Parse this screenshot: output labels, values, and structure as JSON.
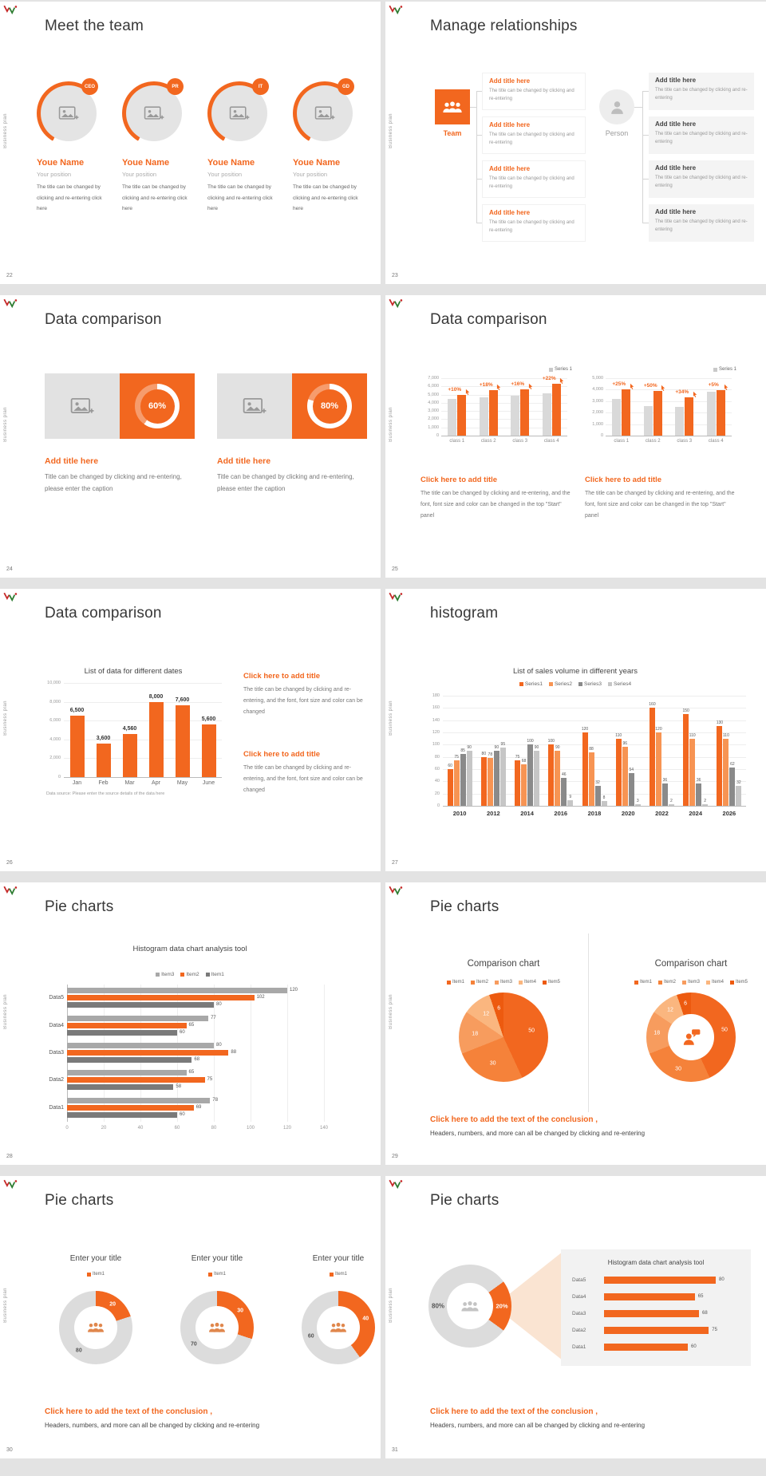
{
  "accent": "#F2671F",
  "common": {
    "sidebar": "Business plan"
  },
  "slides": [
    {
      "page": "22",
      "title": "Meet the team",
      "members": [
        {
          "badge": "CEO",
          "name": "Youe Name",
          "position": "Your position",
          "desc": "The title can be changed by clicking and re-entering click here"
        },
        {
          "badge": "PR",
          "name": "Youe Name",
          "position": "Your position",
          "desc": "The title can be changed by clicking and re-entering click here"
        },
        {
          "badge": "IT",
          "name": "Youe Name",
          "position": "Your position",
          "desc": "The title can be changed by clicking and re-entering click here"
        },
        {
          "badge": "GD",
          "name": "Youe Name",
          "position": "Your position",
          "desc": "The title can be changed by clicking and re-entering click here"
        }
      ]
    },
    {
      "page": "23",
      "title": "Manage relationships",
      "team_label": "Team",
      "person_label": "Person",
      "items_left": [
        {
          "title": "Add title here",
          "text": "The title can be changed by clicking and re-entering"
        },
        {
          "title": "Add title here",
          "text": "The title can be changed by clicking and re-entering"
        },
        {
          "title": "Add title here",
          "text": "The title can be changed by clicking and re-entering"
        },
        {
          "title": "Add title here",
          "text": "The title can be changed by clicking and re-entering"
        }
      ],
      "items_right": [
        {
          "title": "Add title here",
          "text": "The title can be changed by clicking and re-entering"
        },
        {
          "title": "Add title here",
          "text": "The title can be changed by clicking and re-entering"
        },
        {
          "title": "Add title here",
          "text": "The title can be changed by clicking and re-entering"
        },
        {
          "title": "Add title here",
          "text": "The title can be changed by clicking and re-entering"
        }
      ]
    },
    {
      "page": "24",
      "title": "Data comparison",
      "cards": [
        {
          "percent": 60,
          "label": "60%",
          "title": "Add title here",
          "text": "Title can be changed by clicking and re-entering, please enter the caption"
        },
        {
          "percent": 80,
          "label": "80%",
          "title": "Add title here",
          "text": "Title can be changed by clicking and re-entering, please enter the caption"
        }
      ]
    },
    {
      "page": "25",
      "title": "Data comparison",
      "charts": [
        {
          "type": "bar",
          "legend": "Series 1",
          "ymax": 7000,
          "yticks": [
            "7,000",
            "6,000",
            "5,000",
            "4,000",
            "3,000",
            "2,000",
            "1,000",
            "0"
          ],
          "categories": [
            "class 1",
            "class 2",
            "class 3",
            "class 4"
          ],
          "series": [
            {
              "name": "base",
              "values": [
                4500,
                4700,
                4900,
                5200
              ]
            },
            {
              "name": "Series 1",
              "values": [
                4950,
                5546,
                5684,
                6344
              ]
            }
          ],
          "growth": [
            "+10%",
            "+18%",
            "+16%",
            "+22%"
          ],
          "caption_title": "Click here to add title",
          "caption_text": "The title can be changed by clicking and re-entering, and the font, font size and color can be changed in the top \"Start\" panel"
        },
        {
          "type": "bar",
          "legend": "Series 1",
          "ymax": 5000,
          "yticks": [
            "5,000",
            "4,000",
            "3,000",
            "2,000",
            "1,000",
            "0"
          ],
          "categories": [
            "class 1",
            "class 2",
            "class 3",
            "class 4"
          ],
          "series": [
            {
              "name": "base",
              "values": [
                3200,
                2600,
                2500,
                3800
              ]
            },
            {
              "name": "Series 1",
              "values": [
                4000,
                3900,
                3350,
                3990
              ]
            }
          ],
          "growth": [
            "+25%",
            "+50%",
            "+34%",
            "+5%"
          ],
          "caption_title": "Click here to add title",
          "caption_text": "The title can be changed by clicking and re-entering, and the font, font size and color can be changed in the top \"Start\" panel"
        }
      ]
    },
    {
      "page": "26",
      "title": "Data comparison",
      "chart": {
        "type": "bar",
        "title": "List of data for different dates",
        "ymax": 10000,
        "yticks": [
          "10,000",
          "8,000",
          "6,000",
          "4,000",
          "2,000",
          "0"
        ],
        "categories": [
          "Jan",
          "Feb",
          "Mar",
          "Apr",
          "May",
          "June"
        ],
        "values": [
          6500,
          3600,
          4560,
          8000,
          7600,
          5600
        ],
        "labels": [
          "6,500",
          "3,600",
          "4,560",
          "8,000",
          "7,600",
          "5,600"
        ],
        "source": "Data source: Please enter the source details of the data here"
      },
      "captions": [
        {
          "title": "Click here to add title",
          "text": "The title can be changed by clicking and re-entering, and the font, font size and color can be changed"
        },
        {
          "title": "Click here to add title",
          "text": "The title can be changed by clicking and re-entering, and the font, font size and color can be changed"
        }
      ]
    },
    {
      "page": "27",
      "title": "histogram",
      "chart": {
        "type": "bar",
        "title": "List of sales volume in different years",
        "ymax": 180,
        "yticks": [
          "180",
          "160",
          "140",
          "120",
          "100",
          "80",
          "60",
          "40",
          "20",
          "0"
        ],
        "categories": [
          "2010",
          "2012",
          "2014",
          "2016",
          "2018",
          "2020",
          "2022",
          "2024",
          "2026"
        ],
        "colors": [
          "#F2671F",
          "#F79453",
          "#8A8A8A",
          "#C6C6C6"
        ],
        "series": [
          {
            "name": "Series1",
            "values": [
              60,
              80,
              75,
              100,
              120,
              110,
              160,
              150,
              130
            ]
          },
          {
            "name": "Series2",
            "values": [
              75,
              78,
              68,
              90,
              88,
              96,
              120,
              110,
              110
            ]
          },
          {
            "name": "Series3",
            "values": [
              85,
              90,
              100,
              46,
              32,
              54,
              36,
              36,
              62
            ]
          },
          {
            "name": "Series4",
            "values": [
              90,
              95,
              90,
              9,
              8,
              3,
              2,
              2,
              32
            ]
          }
        ]
      }
    },
    {
      "page": "28",
      "title": "Pie charts",
      "chart": {
        "type": "bar-horizontal",
        "title": "Histogram data chart analysis tool",
        "xmax": 140,
        "xticks": [
          "0",
          "20",
          "40",
          "60",
          "80",
          "100",
          "120",
          "140"
        ],
        "categories": [
          "Data5",
          "Data4",
          "Data3",
          "Data2",
          "Data1"
        ],
        "colors": [
          "#A8A8A8",
          "#F2671F",
          "#7A7A7A"
        ],
        "series": [
          {
            "name": "Item3",
            "values": [
              120,
              77,
              80,
              65,
              78
            ]
          },
          {
            "name": "Item2",
            "values": [
              102,
              65,
              88,
              75,
              69
            ]
          },
          {
            "name": "Item1",
            "values": [
              80,
              60,
              68,
              58,
              60
            ]
          }
        ]
      }
    },
    {
      "page": "29",
      "title": "Pie charts",
      "charts": [
        {
          "type": "pie",
          "title": "Comparison chart",
          "legend": [
            "Item1",
            "Item2",
            "Item3",
            "Item4",
            "Item5"
          ],
          "colors": [
            "#F2671F",
            "#F5823A",
            "#F79C5E",
            "#FAB67F",
            "#ED5A0F"
          ],
          "values": [
            50,
            30,
            18,
            12,
            6
          ]
        },
        {
          "type": "donut",
          "title": "Comparison chart",
          "legend": [
            "Item1",
            "Item2",
            "Item3",
            "Item4",
            "Item5"
          ],
          "colors": [
            "#F2671F",
            "#F5823A",
            "#F79C5E",
            "#FAB67F",
            "#ED5A0F"
          ],
          "values": [
            50,
            30,
            18,
            12,
            6
          ]
        }
      ],
      "conclusion_title": "Click here to add the text of the conclusion ,",
      "conclusion_text": "Headers, numbers, and more can all be changed by clicking and re-entering"
    },
    {
      "page": "30",
      "title": "Pie charts",
      "donuts": [
        {
          "type": "donut",
          "title": "Enter your title",
          "legend": "Item1",
          "value": 20,
          "rest": 80
        },
        {
          "type": "donut",
          "title": "Enter your title",
          "legend": "Item1",
          "value": 30,
          "rest": 70
        },
        {
          "type": "donut",
          "title": "Enter your title",
          "legend": "Item1",
          "value": 40,
          "rest": 60
        }
      ],
      "conclusion_title": "Click here to add the text of the conclusion ,",
      "conclusion_text": "Headers, numbers, and more can all be changed by clicking and re-entering"
    },
    {
      "page": "31",
      "title": "Pie charts",
      "donut": {
        "type": "donut",
        "orange_label": "20%",
        "gray_label": "80%",
        "value": 20
      },
      "panel": {
        "type": "bar-horizontal",
        "title": "Histogram data chart analysis tool",
        "categories": [
          "Data5",
          "Data4",
          "Data3",
          "Data2",
          "Data1"
        ],
        "values": [
          80,
          65,
          68,
          75,
          60
        ]
      },
      "conclusion_title": "Click here to add the text of the conclusion ,",
      "conclusion_text": "Headers, numbers, and more can all be changed by clicking and re-entering"
    }
  ]
}
